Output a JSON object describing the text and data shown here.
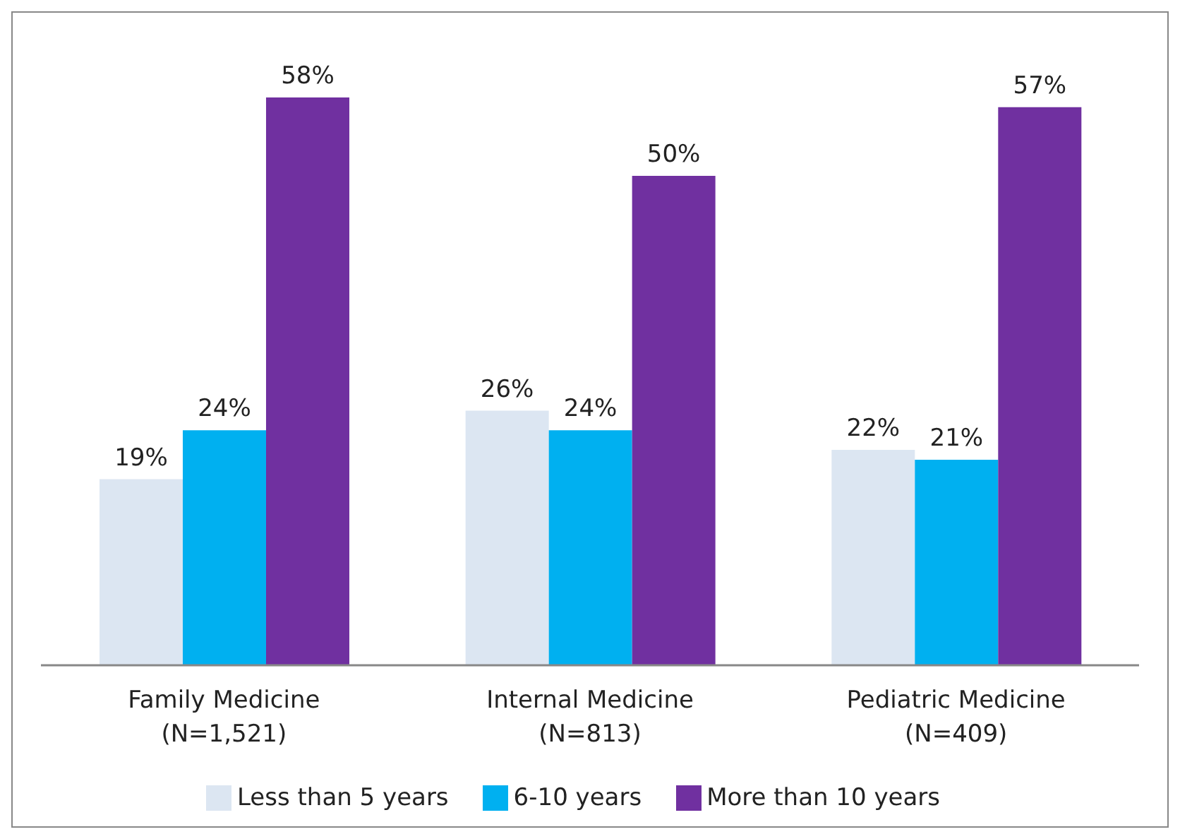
{
  "chart_data": {
    "type": "bar",
    "categories": [
      "Family Medicine\n(N=1,521)",
      "Internal Medicine\n(N=813)",
      "Pediatric Medicine\n(N=409)"
    ],
    "series": [
      {
        "name": "Less than 5 years",
        "color": "#dce6f2",
        "values": [
          19,
          26,
          22
        ],
        "value_labels": [
          "19%",
          "26%",
          "22%"
        ]
      },
      {
        "name": "6-10 years",
        "color": "#00b0f0",
        "values": [
          24,
          24,
          21
        ],
        "value_labels": [
          "24%",
          "24%",
          "21%"
        ]
      },
      {
        "name": "More than 10 years",
        "color": "#7030a0",
        "values": [
          58,
          50,
          57
        ],
        "value_labels": [
          "58%",
          "50%",
          "57%"
        ]
      }
    ],
    "legend": "bottom"
  }
}
